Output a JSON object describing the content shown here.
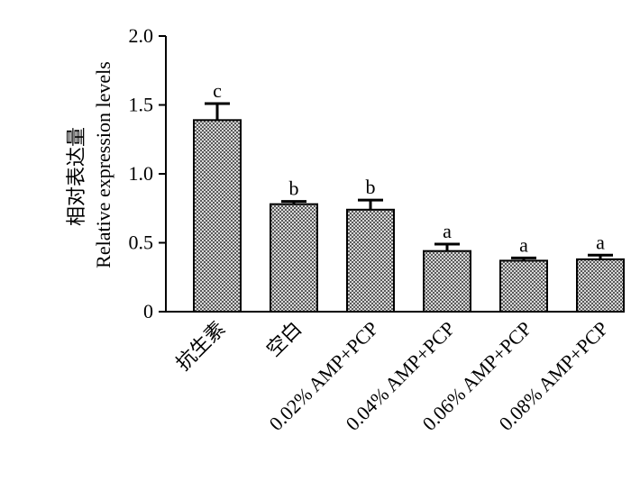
{
  "chart_data": {
    "type": "bar",
    "categories": [
      "抗生素",
      "空白",
      "0.02% AMP+PCP",
      "0.04% AMP+PCP",
      "0.06% AMP+PCP",
      "0.08% AMP+PCP"
    ],
    "values": [
      1.39,
      0.78,
      0.74,
      0.44,
      0.37,
      0.38
    ],
    "errors": [
      0.12,
      0.02,
      0.07,
      0.05,
      0.02,
      0.03
    ],
    "significance": [
      "c",
      "b",
      "b",
      "a",
      "a",
      "a"
    ],
    "title": "",
    "xlabel": "",
    "ylabel": [
      "相对表达量",
      "Relative expression levels"
    ],
    "ylim": [
      0,
      2.0
    ],
    "yticks": [
      "0",
      "0.5",
      "1.0",
      "1.5",
      "2.0"
    ],
    "grid": false,
    "bar_fill": "checkered gray",
    "colors": {
      "bar_dark": "#5a5a5a",
      "bar_light": "#d8d8d8",
      "axis": "#000000"
    }
  }
}
